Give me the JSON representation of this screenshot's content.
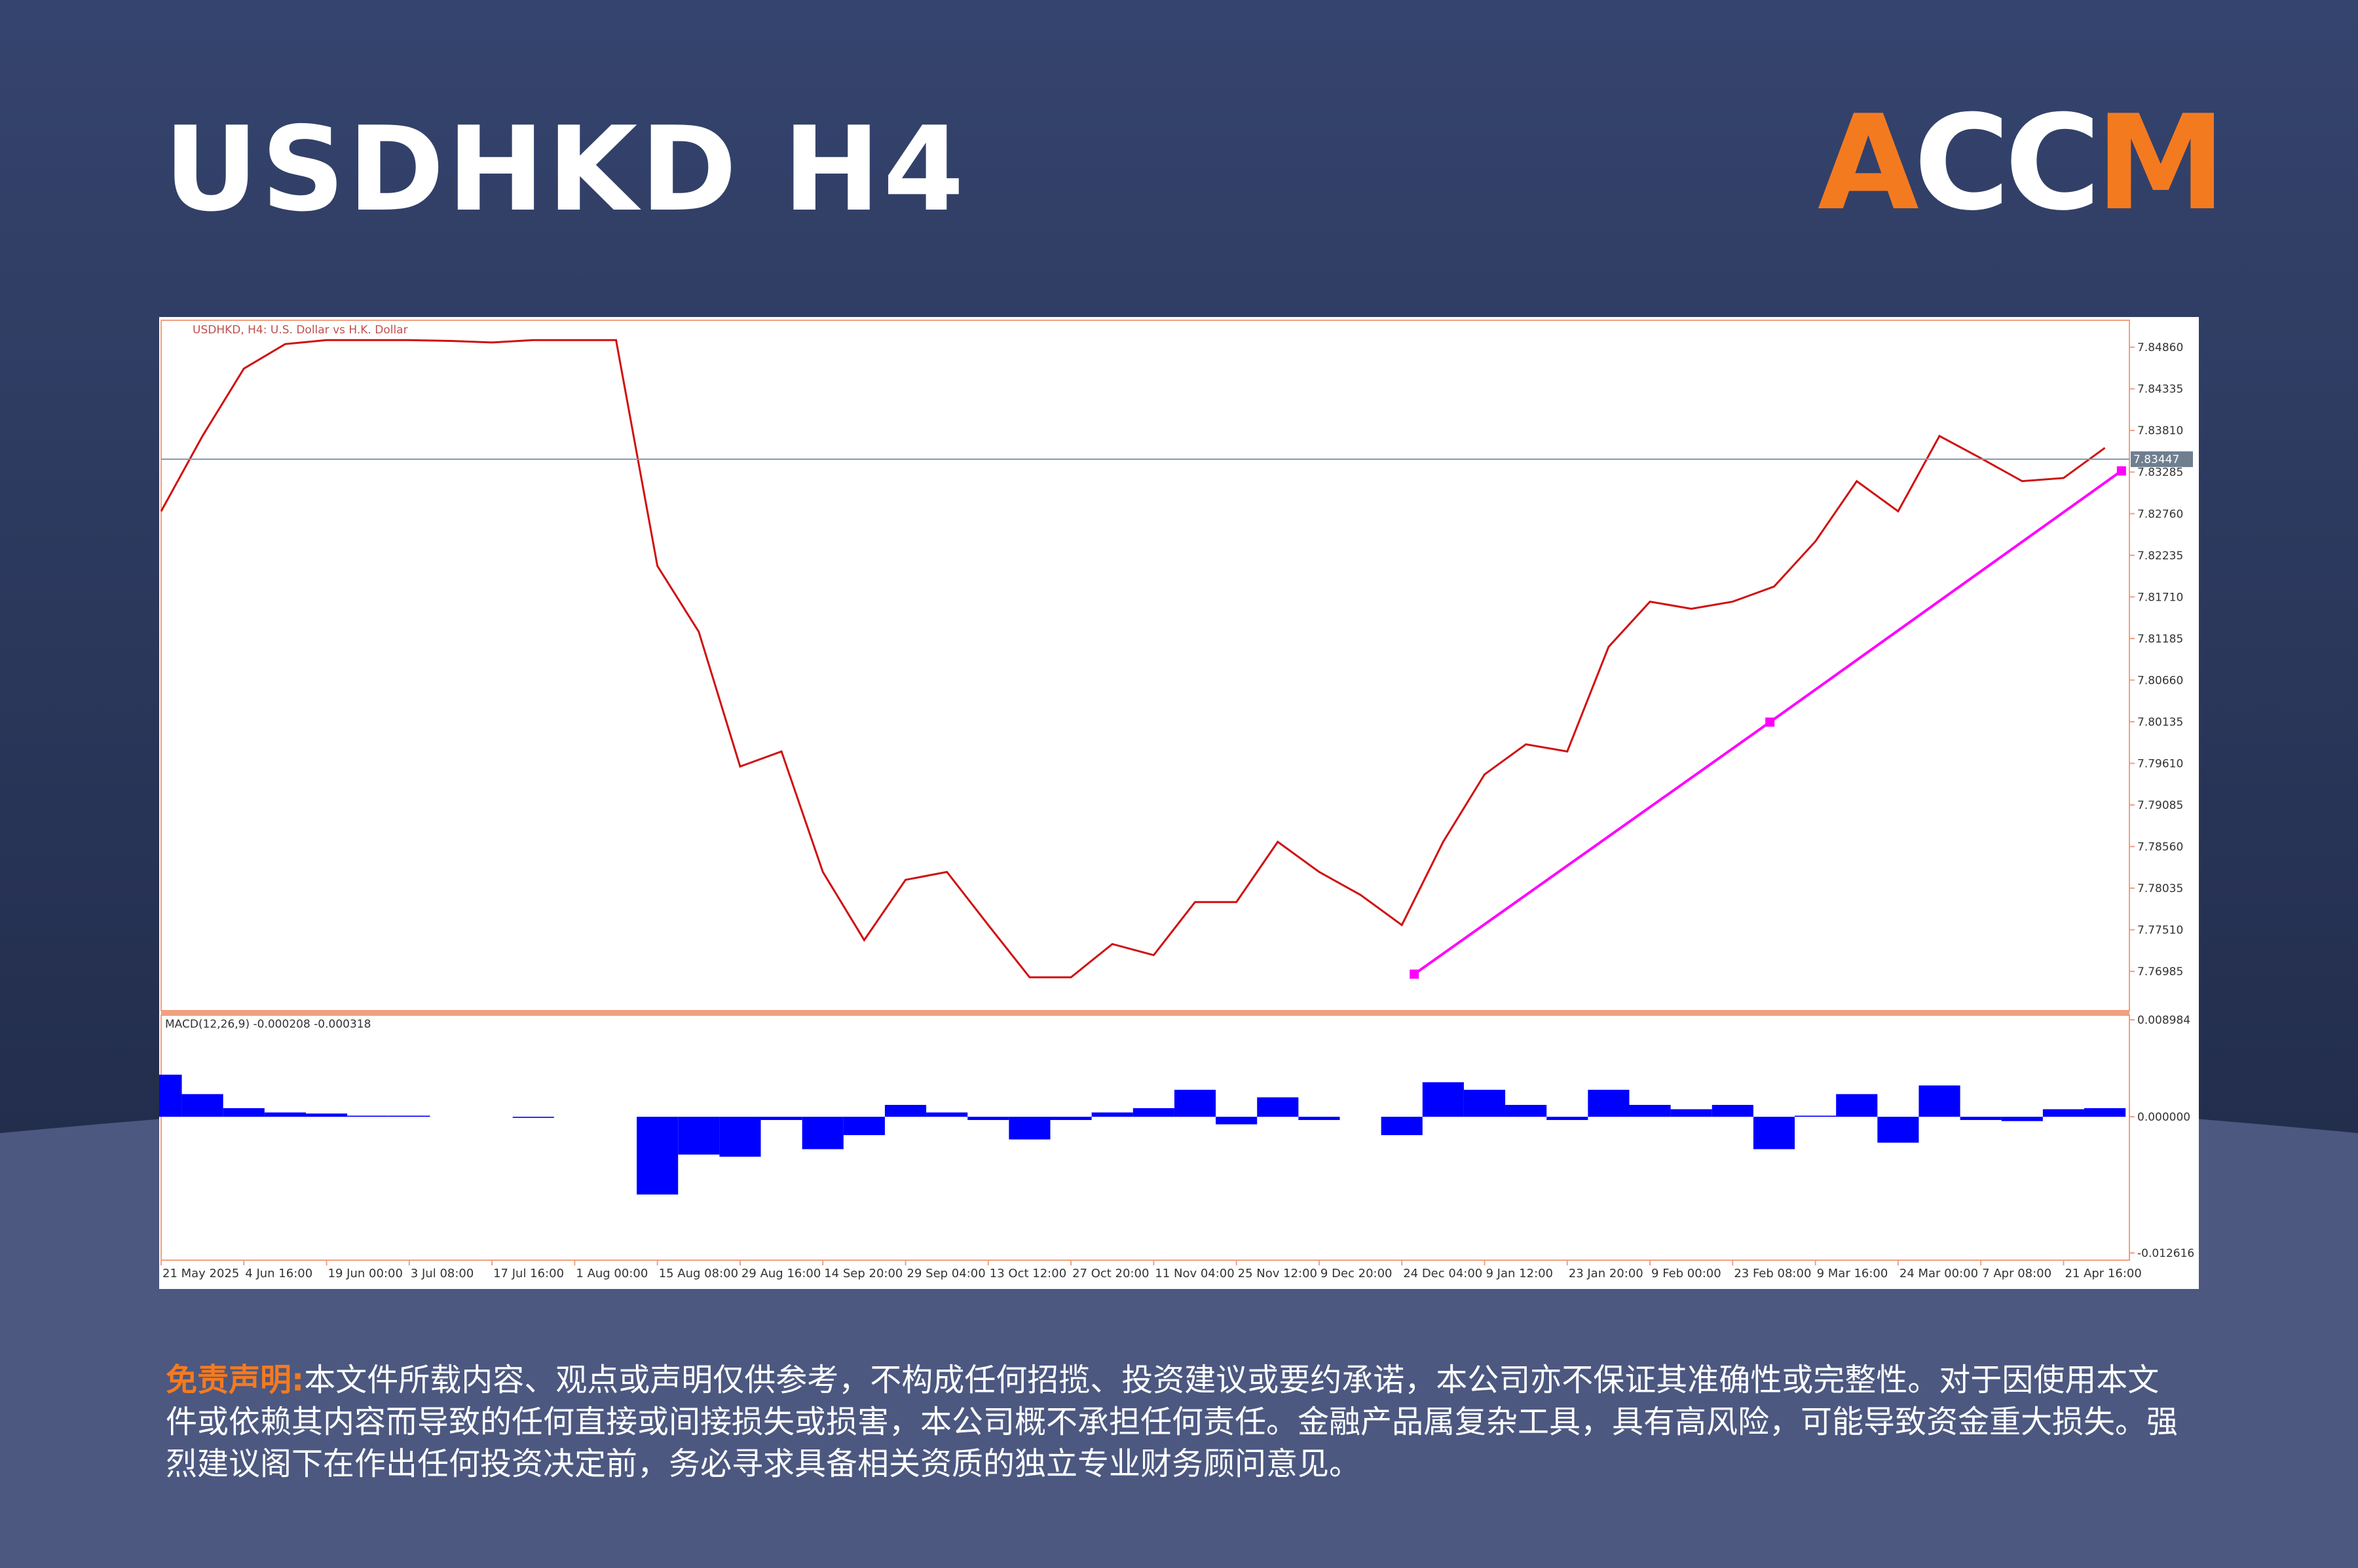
{
  "header": {
    "title": "USDHKD H4",
    "logo": [
      "A",
      "CC",
      "M"
    ]
  },
  "chart_data": [
    {
      "type": "line",
      "title": "USDHKD, H4: U.S. Dollar vs H.K. Dollar",
      "categories": [
        "21 May 2025",
        null,
        "4 Jun 16:00",
        null,
        "19 Jun 00:00",
        null,
        "3 Jul 08:00",
        null,
        "17 Jul 16:00",
        null,
        "1 Aug 00:00",
        null,
        "15 Aug 08:00",
        null,
        "29 Aug 16:00",
        null,
        "14 Sep 20:00",
        null,
        "29 Sep 04:00",
        null,
        "13 Oct 12:00",
        null,
        "27 Oct 20:00",
        null,
        "11 Nov 04:00",
        null,
        "25 Nov 12:00",
        null,
        "9 Dec 20:00",
        null,
        "24 Dec 04:00",
        null,
        "9 Jan 12:00",
        null,
        "23 Jan 20:00",
        null,
        "9 Feb 00:00",
        null,
        "23 Feb 08:00",
        null,
        "9 Mar 16:00",
        null,
        "24 Mar 00:00",
        null,
        "7 Apr 08:00",
        null,
        "21 Apr 16:00",
        null
      ],
      "values": [
        7.8279,
        7.8374,
        7.8459,
        7.849,
        7.8495,
        7.8495,
        7.8495,
        7.8494,
        7.8492,
        7.8495,
        7.8495,
        7.8495,
        7.821,
        7.8127,
        7.7957,
        7.7976,
        7.7824,
        7.7738,
        7.7814,
        7.7824,
        7.7757,
        7.7691,
        7.7691,
        7.7733,
        7.7719,
        7.7786,
        7.7786,
        7.7862,
        7.7824,
        7.7795,
        7.7757,
        7.7862,
        7.7947,
        7.7985,
        7.7976,
        7.8108,
        7.8165,
        7.8156,
        7.8165,
        7.8184,
        7.8241,
        7.8317,
        7.8279,
        7.8374,
        7.8346,
        7.8317,
        7.8321,
        7.8359
      ],
      "color": "#d01010",
      "ylim": [
        7.7649,
        7.852
      ],
      "yticks": [
        {
          "value": 7.8486,
          "label": "7.84860"
        },
        7.84335,
        {
          "value": 7.8381,
          "label": "7.83810"
        },
        7.83285,
        {
          "value": 7.8276,
          "label": "7.82760"
        },
        7.82235,
        {
          "value": 7.8171,
          "label": "7.81710"
        },
        7.81185,
        {
          "value": 7.8066,
          "label": "7.80660"
        },
        7.80135,
        {
          "value": 7.7961,
          "label": "7.79610"
        },
        7.79085,
        {
          "value": 7.7856,
          "label": "7.78560"
        },
        7.78035,
        {
          "value": 7.7751,
          "label": "7.77510"
        },
        7.76985
      ],
      "current_price": 7.83447,
      "trendline": {
        "x": [
          30.3,
          38.9,
          47.4
        ],
        "values": [
          7.7695,
          7.8013,
          7.833
        ],
        "color": "#ff00ff"
      }
    },
    {
      "type": "bar",
      "title": "MACD(12,26,9) -0.000208 -0.000318",
      "values": [
        0.0039,
        0.0021,
        0.0008,
        0.0004,
        0.0003,
        0.0001,
        0.0001,
        0,
        0,
        -0.0001,
        0,
        0,
        -0.0072,
        -0.0035,
        -0.0037,
        -0.0003,
        -0.003,
        -0.0017,
        0.0011,
        0.0004,
        -0.0003,
        -0.0021,
        -0.0003,
        0.0004,
        0.0008,
        0.0025,
        -0.0007,
        0.0018,
        -0.0003,
        0,
        -0.0017,
        0.0032,
        0.0025,
        0.0011,
        -0.0003,
        0.0025,
        0.0011,
        0.0007,
        0.0011,
        -0.003,
        0.0001,
        0.0021,
        -0.0024,
        0.0029,
        -0.0003,
        -0.0004,
        0.0007,
        0.0008
      ],
      "color": "#0000ff",
      "ylim": [
        -0.012616,
        0.008984
      ],
      "yticks": [
        0.008984,
        {
          "value": 0,
          "label": "0.000000"
        },
        -0.012616
      ]
    }
  ],
  "disclaimer": {
    "label": "免责声明:",
    "text": "本文件所载内容、观点或声明仅供参考，不构成任何招揽、投资建议或要约承诺，本公司亦不保证其准确性或完整性。对于因使用本文件或依赖其内容而导致的任何直接或间接损失或损害，本公司概不承担任何责任。金融产品属复杂工具，具有高风险，可能导致资金重大损失。强烈建议阁下在作出任何投资决定前，务必寻求具备相关资质的独立专业财务顾问意见。"
  }
}
